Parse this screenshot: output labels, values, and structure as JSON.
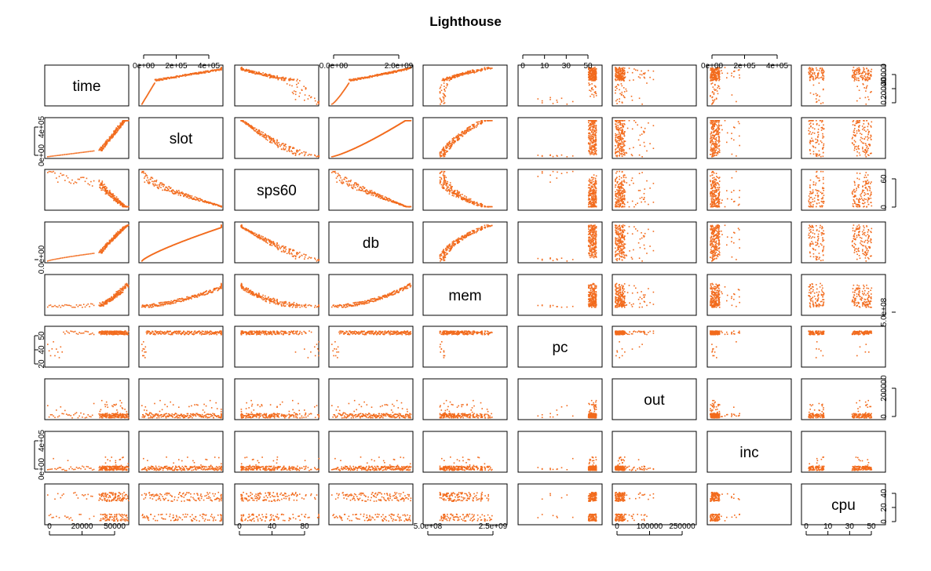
{
  "chart_data": {
    "type": "scatter",
    "title": "Lighthouse",
    "variables": [
      "time",
      "slot",
      "sps60",
      "db",
      "mem",
      "pc",
      "out",
      "inc",
      "cpu"
    ],
    "marker_color": "#f26b1d",
    "axes": {
      "time": {
        "ticks": [
          "0",
          "20000",
          "50000"
        ],
        "right_ticks": [
          "0",
          "20000",
          "40000"
        ],
        "range": [
          0,
          70000
        ]
      },
      "slot": {
        "ticks": [
          "0e+00",
          "2e+05",
          "4e+05"
        ],
        "left_ticks": [
          "0e+00",
          "4e+05"
        ],
        "range": [
          0,
          430000
        ]
      },
      "sps60": {
        "ticks": [
          "0",
          "40",
          "80"
        ],
        "right_ticks": [
          "0",
          "60"
        ],
        "range": [
          0,
          120
        ]
      },
      "db": {
        "ticks": [
          "0.0e+00",
          "2.0e+09"
        ],
        "left_ticks": [
          "0.0e+00"
        ],
        "range": [
          0,
          2700000000
        ]
      },
      "mem": {
        "ticks": [
          "5.0e+08",
          "2.5e+09"
        ],
        "right_ticks": [
          "5.0e+08"
        ],
        "range": [
          0,
          3300000000
        ]
      },
      "pc": {
        "ticks": [
          "0",
          "10",
          "30",
          "50"
        ],
        "left_ticks": [
          "20",
          "40",
          "50"
        ],
        "range": [
          0,
          55
        ]
      },
      "out": {
        "ticks": [
          "0",
          "100000",
          "250000"
        ],
        "right_ticks": [
          "0",
          "200000"
        ],
        "range": [
          0,
          280000
        ]
      },
      "inc": {
        "ticks": [
          "0e+00",
          "2e+05",
          "4e+05"
        ],
        "left_ticks": [
          "0e+00",
          "4e+05"
        ],
        "range": [
          0,
          520000
        ]
      },
      "cpu": {
        "ticks": [
          "0",
          "10",
          "30",
          "50"
        ],
        "right_ticks": [
          "0",
          "20",
          "40"
        ],
        "range": [
          0,
          55
        ]
      }
    }
  }
}
